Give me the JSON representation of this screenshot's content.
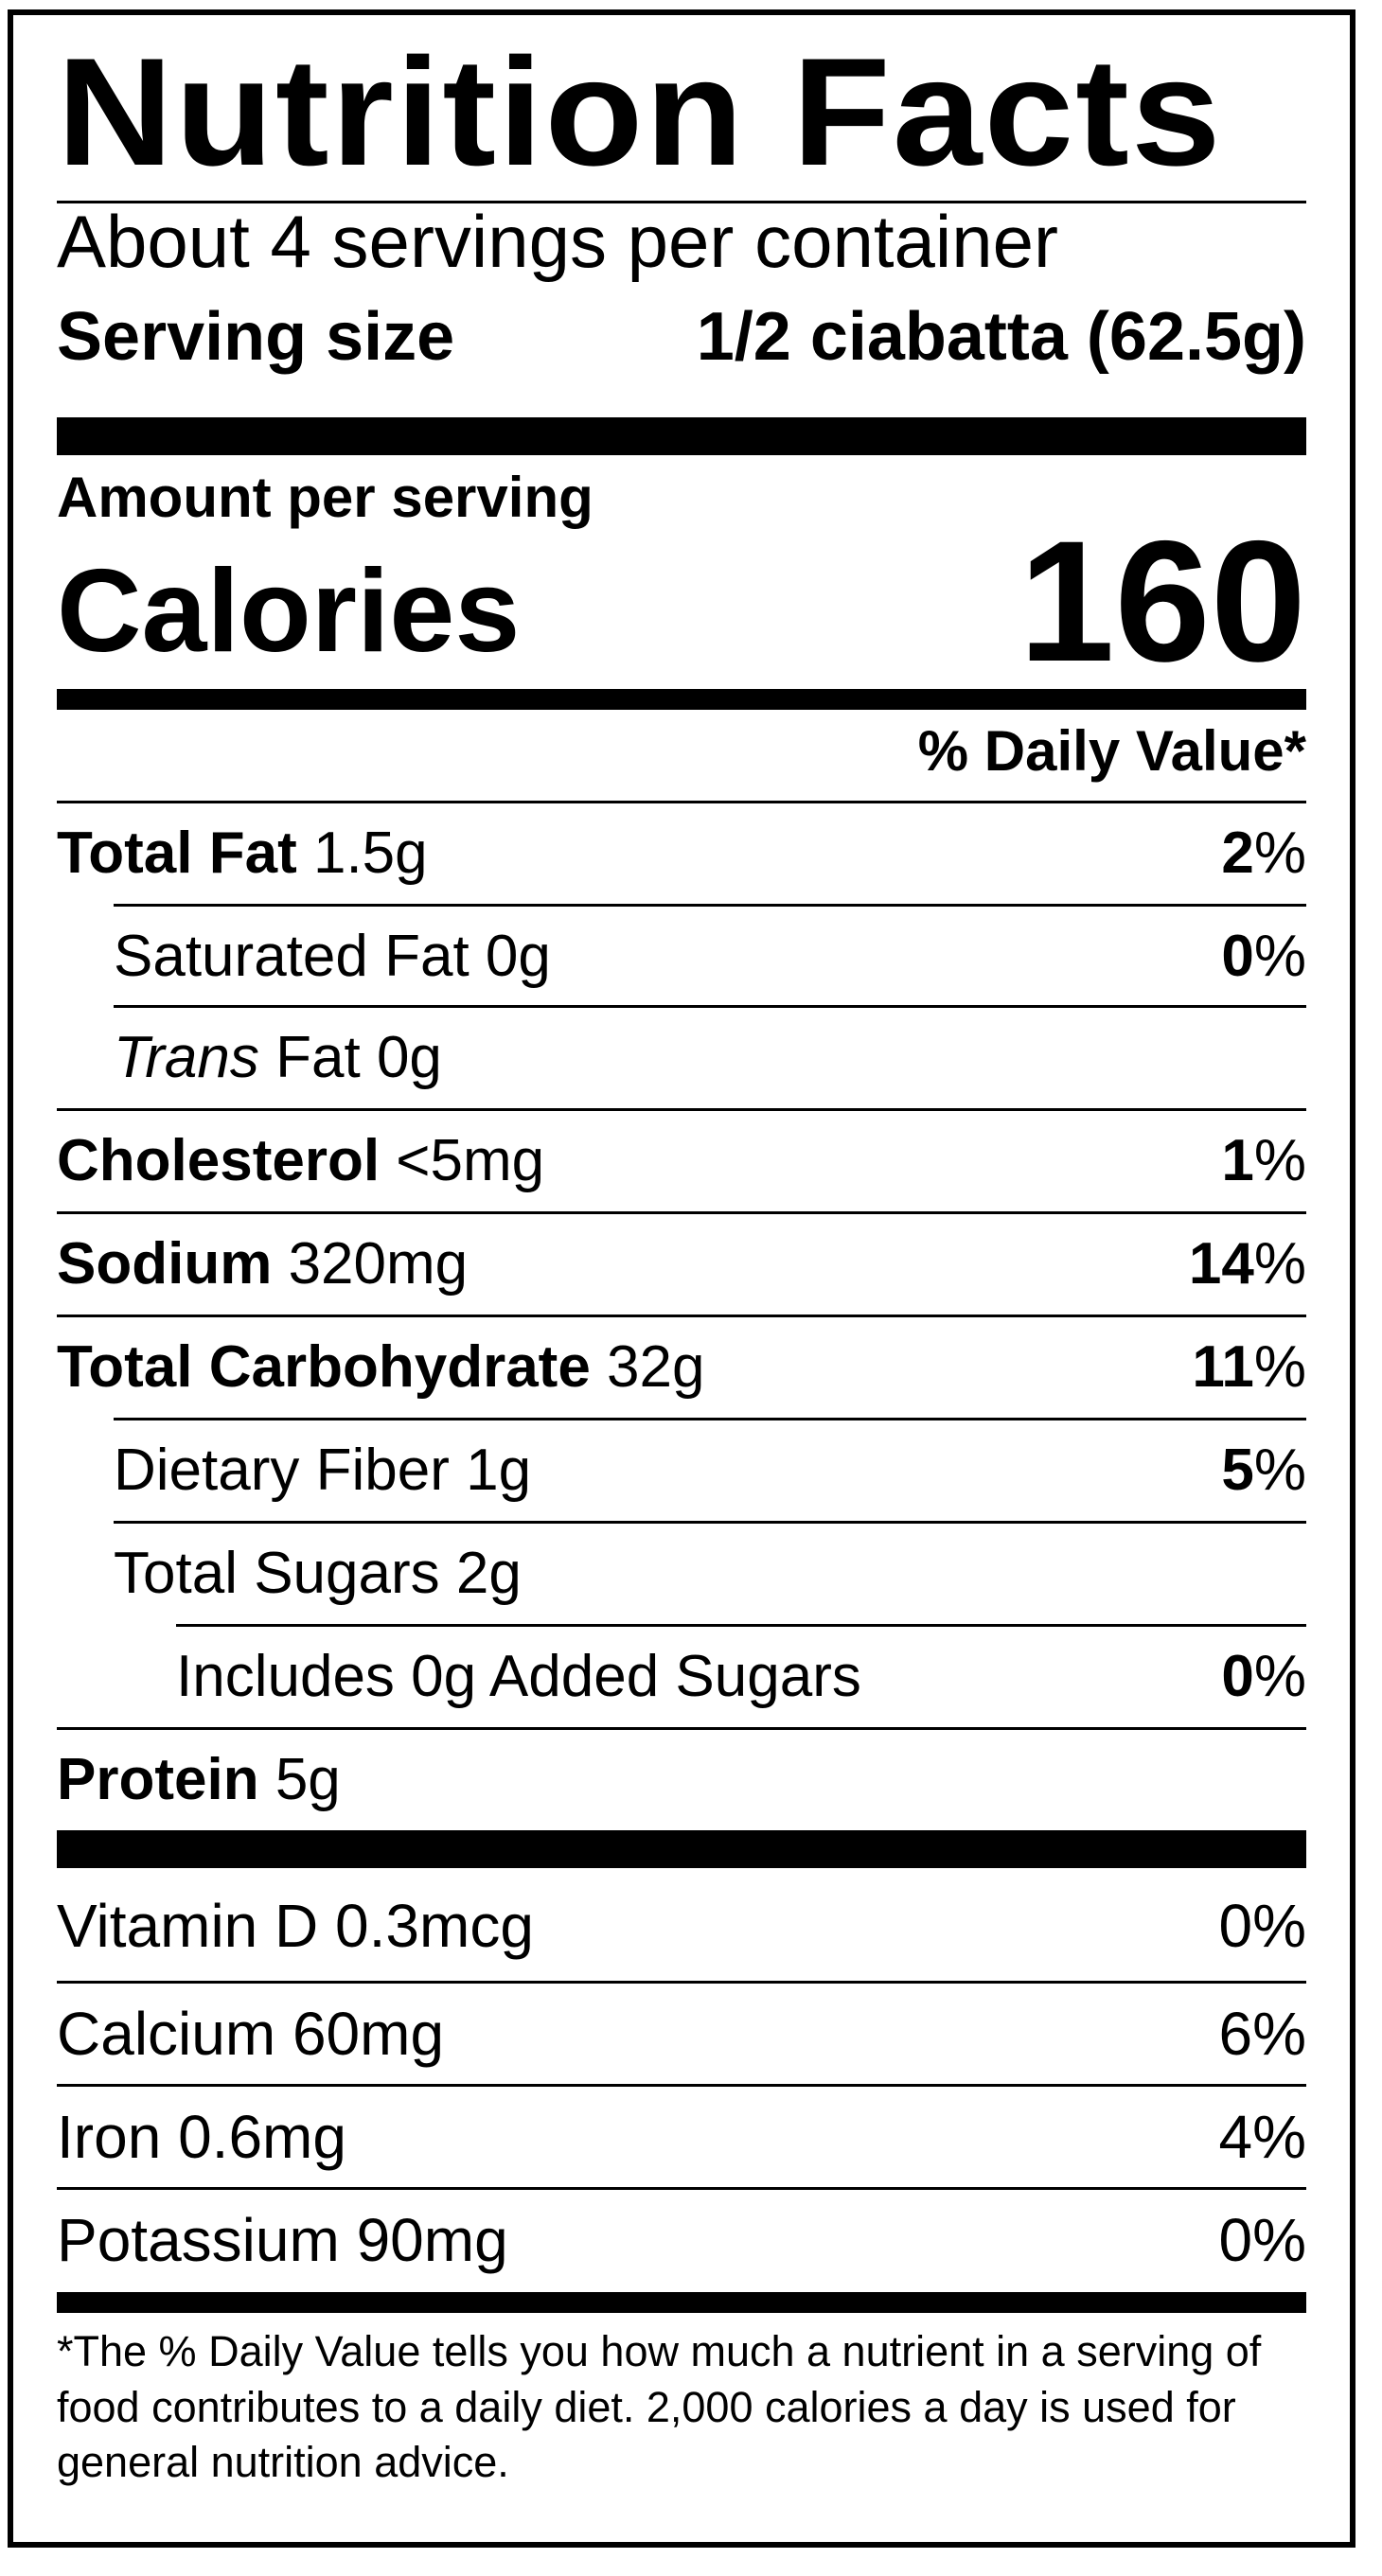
{
  "title": "Nutrition Facts",
  "servings_per_container": "About 4 servings per container",
  "serving_size_label": "Serving size",
  "serving_size_value": "1/2 ciabatta (62.5g)",
  "amount_per_serving": "Amount per serving",
  "calories_label": "Calories",
  "calories_value": "160",
  "daily_value_header": "% Daily Value*",
  "nutrients": [
    {
      "name": "Total Fat",
      "amount": "1.5g",
      "dv": "2"
    },
    {
      "name": "Saturated Fat",
      "amount": "0g",
      "dv": "0"
    },
    {
      "name_italic": "Trans",
      "name": "Fat",
      "amount": "0g"
    },
    {
      "name": "Cholesterol",
      "amount": "<5mg",
      "dv": "1"
    },
    {
      "name": "Sodium",
      "amount": "320mg",
      "dv": "14"
    },
    {
      "name": "Total Carbohydrate",
      "amount": "32g",
      "dv": "11"
    },
    {
      "name": "Dietary Fiber",
      "amount": "1g",
      "dv": "5"
    },
    {
      "name": "Total Sugars",
      "amount": "2g"
    },
    {
      "name": "Includes 0g Added Sugars",
      "dv": "0"
    },
    {
      "name": "Protein",
      "amount": "5g"
    }
  ],
  "vitamins": [
    {
      "name": "Vitamin D",
      "amount": "0.3mcg",
      "dv": "0%"
    },
    {
      "name": "Calcium",
      "amount": "60mg",
      "dv": "6%"
    },
    {
      "name": "Iron",
      "amount": "0.6mg",
      "dv": "4%"
    },
    {
      "name": "Potassium",
      "amount": "90mg",
      "dv": "0%"
    }
  ],
  "percent_sign": "%",
  "footnote": "*The % Daily Value tells you how much a nutrient in a serving of food contributes to a daily diet. 2,000 calories a day is used for general nutrition advice."
}
